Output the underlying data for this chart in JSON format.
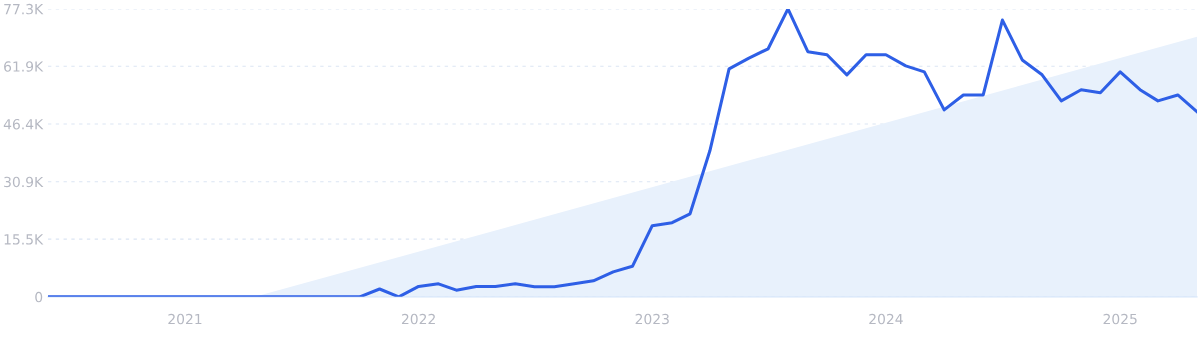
{
  "chart_data": {
    "type": "line",
    "x": [
      "2020-06",
      "2020-07",
      "2020-08",
      "2020-09",
      "2020-10",
      "2020-11",
      "2020-12",
      "2021-01",
      "2021-02",
      "2021-03",
      "2021-04",
      "2021-05",
      "2021-06",
      "2021-07",
      "2021-08",
      "2021-09",
      "2021-10",
      "2021-11",
      "2021-12",
      "2022-01",
      "2022-02",
      "2022-03",
      "2022-04",
      "2022-05",
      "2022-06",
      "2022-07",
      "2022-08",
      "2022-09",
      "2022-10",
      "2022-11",
      "2022-12",
      "2023-01",
      "2023-02",
      "2023-03",
      "2023-04",
      "2023-05",
      "2023-06",
      "2023-07",
      "2023-08",
      "2023-09",
      "2023-10",
      "2023-11",
      "2023-12",
      "2024-01",
      "2024-02",
      "2024-03",
      "2024-04",
      "2024-05",
      "2024-06",
      "2024-07",
      "2024-08",
      "2024-09",
      "2024-10",
      "2024-11",
      "2024-12",
      "2025-01",
      "2025-02",
      "2025-03",
      "2025-04",
      "2025-05"
    ],
    "series": [
      {
        "type": "area",
        "color": "#e8f1fc",
        "x": [
          "2021-04-20",
          "2025-05"
        ],
        "values": [
          0,
          69.8
        ]
      },
      {
        "color": "#2e5fe6",
        "values": [
          0,
          0,
          0,
          0,
          0,
          0,
          0,
          0,
          0,
          0,
          0,
          0,
          0,
          0,
          0,
          0,
          0,
          2.1,
          0,
          2.8,
          3.5,
          1.8,
          2.8,
          2.8,
          3.5,
          2.7,
          2.7,
          3.5,
          4.3,
          6.7,
          8.2,
          19.1,
          19.9,
          22.3,
          39.2,
          61.2,
          64.1,
          66.6,
          77.3,
          65.8,
          65.0,
          59.6,
          65.0,
          65.0,
          62.0,
          60.4,
          50.2,
          54.2,
          54.2,
          74.3,
          63.6,
          59.6,
          52.6,
          55.6,
          54.8,
          60.4,
          55.6,
          52.6,
          54.2,
          49.7
        ]
      }
    ],
    "xlim": [
      "2020-06",
      "2025-05"
    ],
    "xticks": [
      "2021",
      "2022",
      "2023",
      "2024",
      "2025"
    ],
    "ylim": [
      0,
      77.3
    ],
    "yticks": [
      {
        "value": 0,
        "label": "0"
      },
      {
        "value": 15.5,
        "label": "15.5K"
      },
      {
        "value": 30.9,
        "label": "30.9K"
      },
      {
        "value": 46.4,
        "label": "46.4K"
      },
      {
        "value": 61.9,
        "label": "61.9K"
      },
      {
        "value": 77.3,
        "label": "77.3K"
      }
    ],
    "grid": "y",
    "line_style": "solid",
    "marker": "none"
  }
}
